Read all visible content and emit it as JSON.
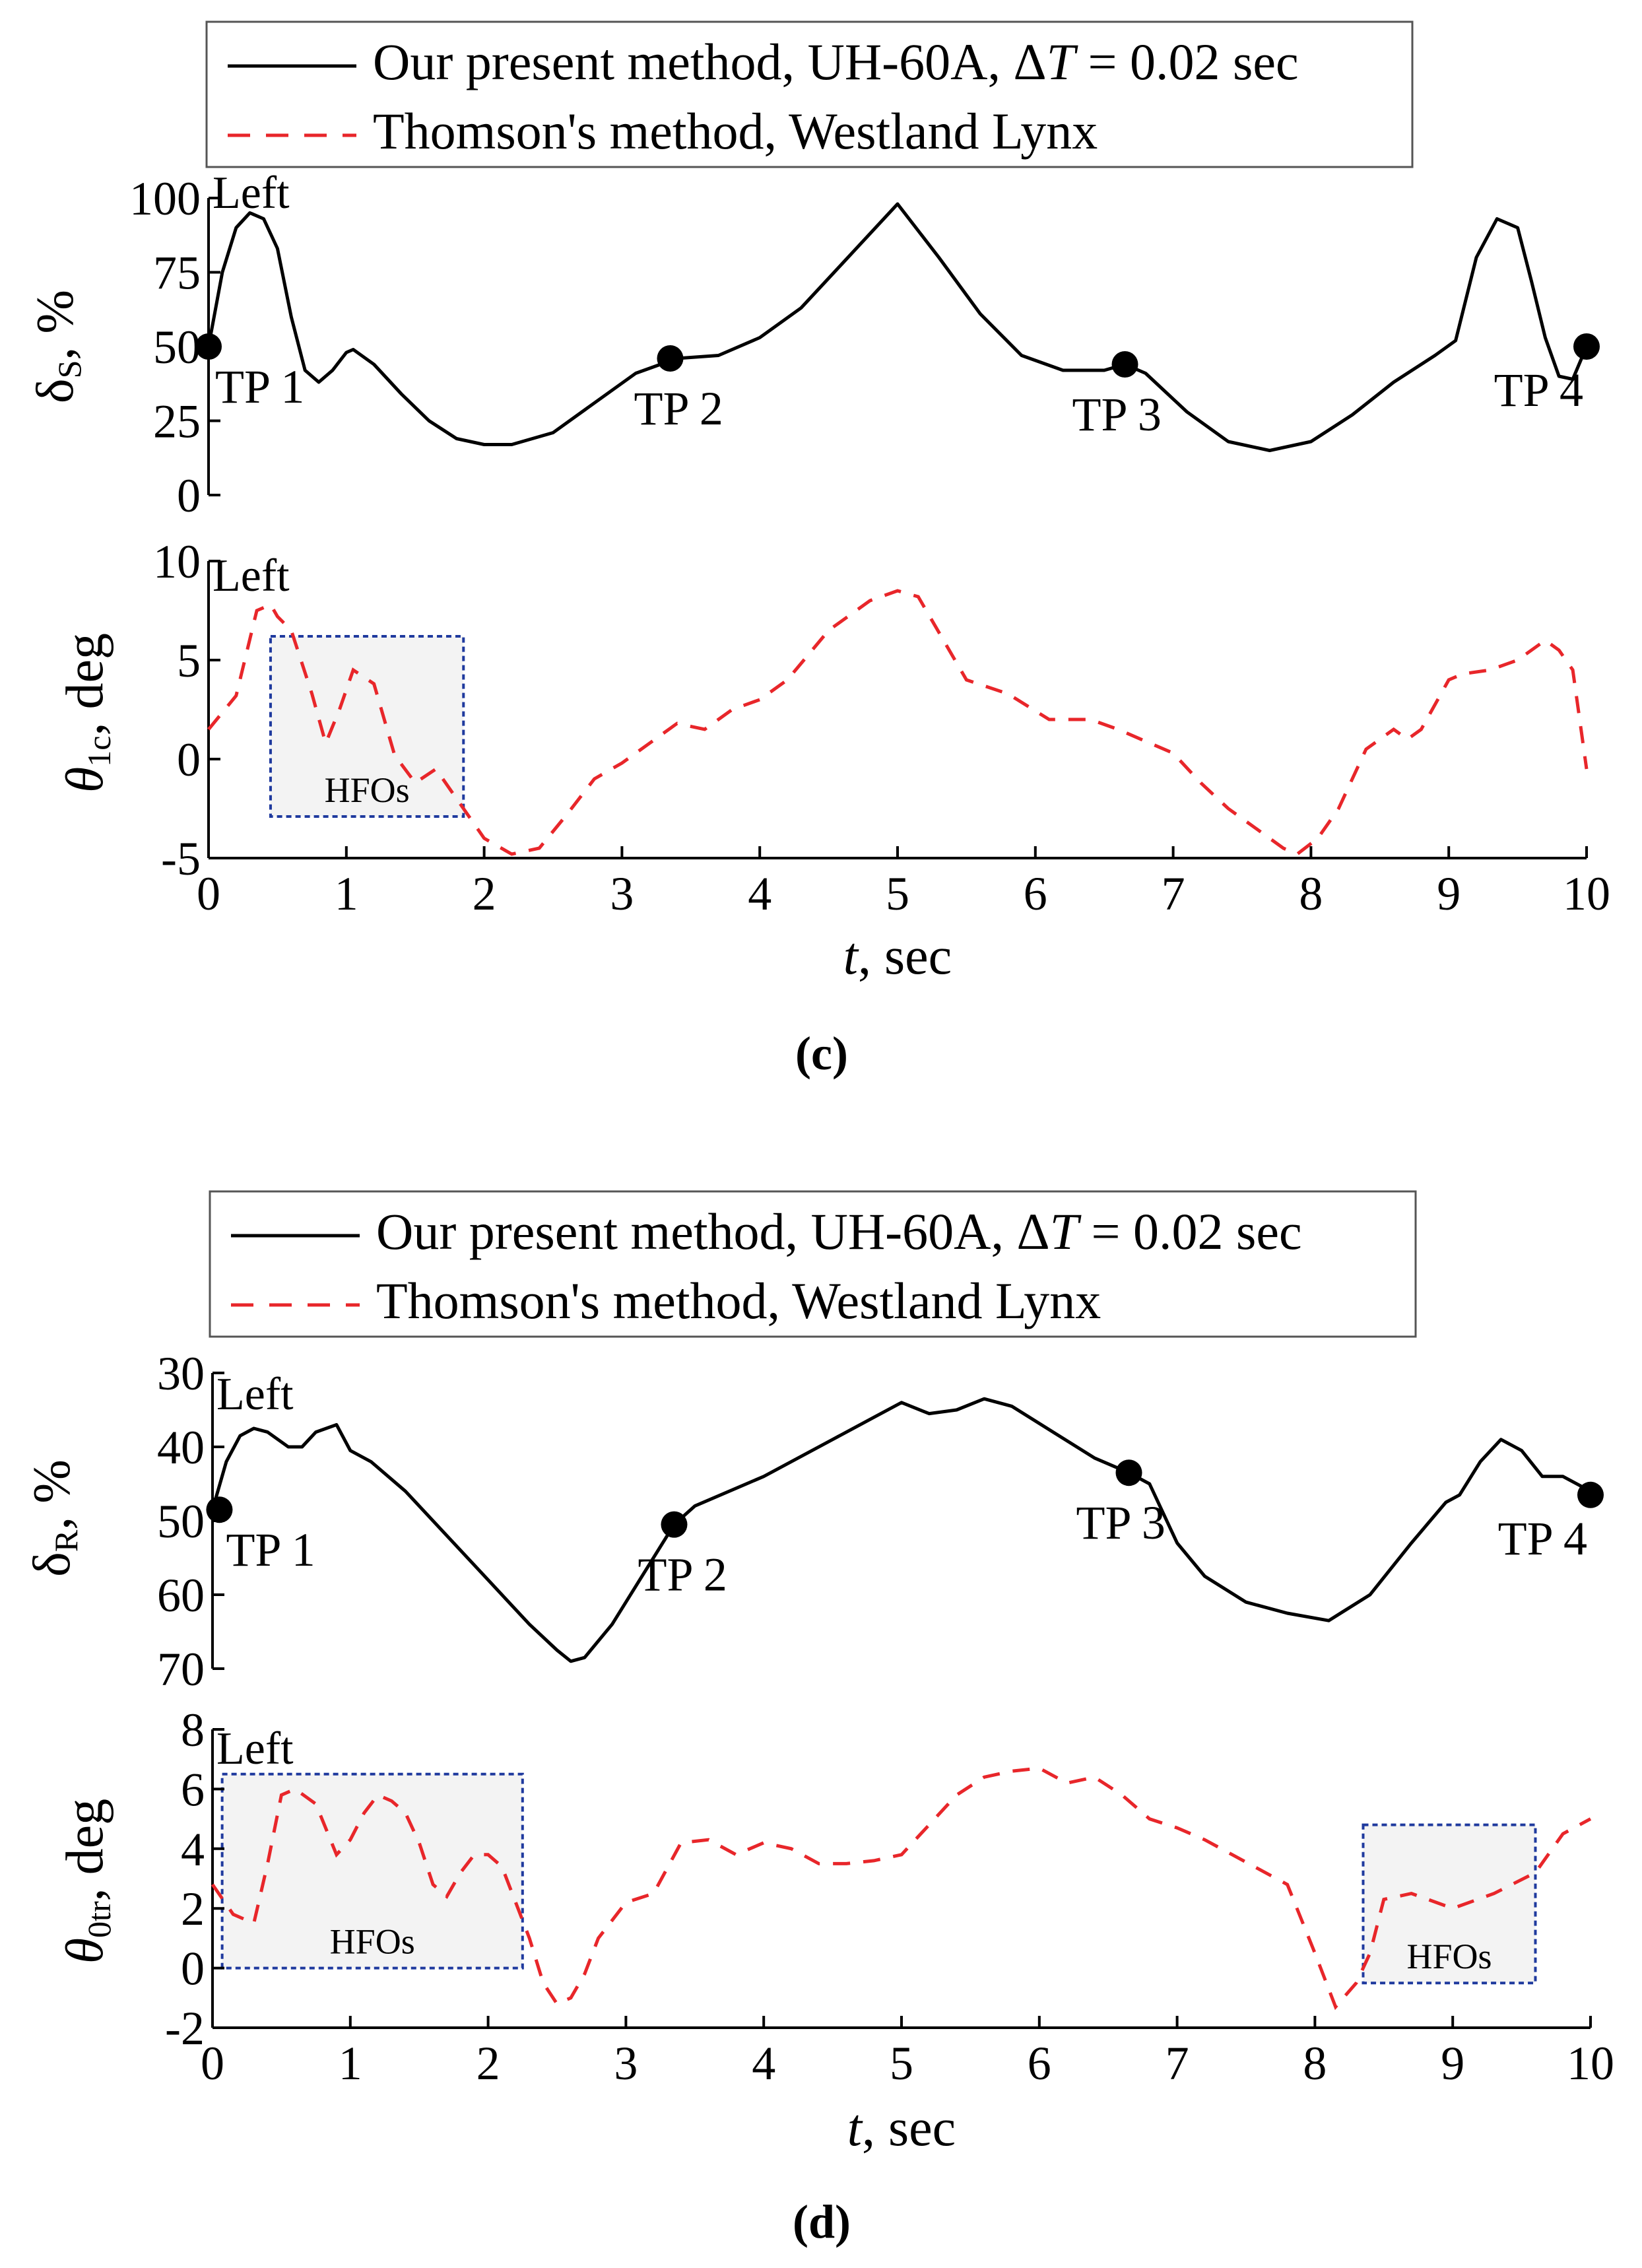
{
  "legend": {
    "entries": [
      {
        "prefix": "Our present method, UH-60A, Δ",
        "italic": "T",
        "suffix": " = 0.02 sec"
      },
      {
        "prefix": "Thomson's method, Westland Lynx",
        "italic": "",
        "suffix": ""
      }
    ]
  },
  "colors": {
    "present": "#000000",
    "thomson": "#e8262a",
    "hfo_box": "#1f3a9e",
    "hfo_fill": "#f3f3f3"
  },
  "xaxis": {
    "label_italic": "t",
    "label_rest": ", sec",
    "ticks": [
      "0",
      "1",
      "2",
      "3",
      "4",
      "5",
      "6",
      "7",
      "8",
      "9",
      "10"
    ]
  },
  "panels": [
    {
      "caption": "(c)",
      "top": {
        "ylabel_main": "δ",
        "ylabel_sub": "S",
        "ylabel_rest": ", %",
        "ticks": [
          "100",
          "75",
          "50",
          "25",
          "0"
        ],
        "annotation": "Left",
        "tp": [
          "TP 1",
          "TP 2",
          "TP 3",
          "TP 4"
        ]
      },
      "bottom": {
        "ylabel_main": "θ",
        "ylabel_sub": "1c",
        "ylabel_rest": ", deg",
        "ticks": [
          "10",
          "5",
          "0",
          "-5"
        ],
        "annotation": "Left",
        "hfo_labels": [
          "HFOs"
        ]
      }
    },
    {
      "caption": "(d)",
      "top": {
        "ylabel_main": "δ",
        "ylabel_sub": "R",
        "ylabel_rest": ", %",
        "ticks": [
          "30",
          "40",
          "50",
          "60",
          "70"
        ],
        "annotation": "Left",
        "tp": [
          "TP 1",
          "TP 2",
          "TP 3",
          "TP 4"
        ]
      },
      "bottom": {
        "ylabel_main": "θ",
        "ylabel_sub": "0tr",
        "ylabel_rest": ", deg",
        "ticks": [
          "8",
          "6",
          "4",
          "2",
          "0",
          "-2"
        ],
        "annotation": "Left",
        "hfo_labels": [
          "HFOs",
          "HFOs"
        ]
      }
    }
  ],
  "chart_data": [
    {
      "type": "line",
      "panel": "(c) top",
      "xlim": [
        0,
        10
      ],
      "ylim": [
        0,
        100
      ],
      "series": [
        {
          "name": "Our present method, UH-60A, ΔT = 0.02 sec",
          "x": [
            0,
            0.1,
            0.2,
            0.3,
            0.4,
            0.5,
            0.6,
            0.7,
            0.8,
            0.9,
            1.0,
            1.05,
            1.2,
            1.4,
            1.6,
            1.8,
            2.0,
            2.2,
            2.5,
            2.8,
            3.1,
            3.4,
            3.7,
            4.0,
            4.3,
            4.6,
            5.0,
            5.3,
            5.6,
            5.9,
            6.2,
            6.5,
            6.65,
            6.8,
            7.1,
            7.4,
            7.7,
            8.0,
            8.3,
            8.6,
            8.9,
            9.05,
            9.2,
            9.35,
            9.5,
            9.6,
            9.7,
            9.8,
            9.9,
            10.0
          ],
          "y": [
            50,
            75,
            90,
            95,
            93,
            83,
            60,
            42,
            38,
            42,
            48,
            49,
            44,
            34,
            25,
            19,
            17,
            17,
            21,
            31,
            41,
            46,
            47,
            53,
            63,
            78,
            98,
            80,
            61,
            47,
            42,
            42,
            44,
            41,
            28,
            18,
            15,
            18,
            27,
            38,
            47,
            52,
            80,
            93,
            90,
            72,
            53,
            40,
            39,
            50
          ]
        }
      ],
      "markers": [
        {
          "label": "TP 1",
          "x": 0,
          "y": 50
        },
        {
          "label": "TP 2",
          "x": 3.35,
          "y": 46
        },
        {
          "label": "TP 3",
          "x": 6.65,
          "y": 44
        },
        {
          "label": "TP 4",
          "x": 10,
          "y": 50
        }
      ]
    },
    {
      "type": "line",
      "panel": "(c) bottom",
      "xlim": [
        0,
        10
      ],
      "ylim": [
        -5,
        10
      ],
      "series": [
        {
          "name": "Thomson's method, Westland Lynx",
          "x": [
            0,
            0.2,
            0.35,
            0.45,
            0.5,
            0.6,
            0.75,
            0.85,
            0.95,
            1.05,
            1.2,
            1.35,
            1.5,
            1.65,
            1.8,
            2.0,
            2.2,
            2.4,
            2.6,
            2.8,
            3.0,
            3.2,
            3.4,
            3.6,
            3.8,
            4.0,
            4.2,
            4.5,
            4.8,
            5.0,
            5.15,
            5.5,
            5.8,
            6.1,
            6.4,
            6.6,
            6.8,
            7.0,
            7.2,
            7.4,
            7.6,
            7.8,
            7.9,
            8.05,
            8.2,
            8.4,
            8.6,
            8.7,
            8.8,
            9.0,
            9.1,
            9.3,
            9.5,
            9.7,
            9.8,
            9.9,
            10.0
          ],
          "y": [
            1.5,
            3.2,
            7.5,
            7.8,
            7.2,
            6.5,
            3.3,
            0.8,
            2.5,
            4.5,
            3.8,
            0.2,
            -1.2,
            -0.5,
            -2.0,
            -4.0,
            -4.8,
            -4.5,
            -2.8,
            -1.0,
            -0.2,
            0.8,
            1.8,
            1.5,
            2.5,
            3.0,
            4.0,
            6.5,
            8.0,
            8.5,
            8.2,
            4.0,
            3.3,
            2.0,
            2.0,
            1.5,
            0.9,
            0.3,
            -1.2,
            -2.5,
            -3.5,
            -4.5,
            -4.8,
            -4.0,
            -2.5,
            0.5,
            1.5,
            1.0,
            1.5,
            4.0,
            4.3,
            4.5,
            5.0,
            6.0,
            5.5,
            4.5,
            -0.5
          ]
        }
      ],
      "hfo_regions": [
        {
          "label": "HFOs",
          "x": [
            0.45,
            1.85
          ],
          "y": [
            -2.9,
            6.2
          ]
        }
      ]
    },
    {
      "type": "line",
      "panel": "(d) top",
      "xlim": [
        0,
        10
      ],
      "ylim": [
        70,
        30
      ],
      "y_inverted": true,
      "series": [
        {
          "name": "Our present method, UH-60A, ΔT = 0.02 sec",
          "x": [
            0,
            0.1,
            0.2,
            0.3,
            0.4,
            0.55,
            0.65,
            0.75,
            0.9,
            1.0,
            1.15,
            1.4,
            1.7,
            2.0,
            2.3,
            2.5,
            2.6,
            2.7,
            2.9,
            3.1,
            3.35,
            3.5,
            4.0,
            4.5,
            4.8,
            5.0,
            5.2,
            5.4,
            5.6,
            5.8,
            6.1,
            6.4,
            6.65,
            6.8,
            7.0,
            7.2,
            7.5,
            7.8,
            8.1,
            8.4,
            8.7,
            8.95,
            9.05,
            9.2,
            9.35,
            9.5,
            9.65,
            9.8,
            10.0
          ],
          "y": [
            48.5,
            42,
            38.5,
            37.5,
            38,
            40,
            40,
            38,
            37,
            40.5,
            42,
            46,
            52,
            58,
            64,
            67.5,
            69,
            68.5,
            64,
            58,
            50.5,
            48,
            44,
            39,
            36,
            34,
            35.5,
            35,
            33.5,
            34.5,
            38,
            41.5,
            43.5,
            45,
            53,
            57.5,
            61,
            62.5,
            63.5,
            60,
            53,
            47.5,
            46.5,
            42,
            39,
            40.5,
            44,
            44,
            46
          ]
        }
      ],
      "markers": [
        {
          "label": "TP 1",
          "x": 0.05,
          "y": 48.5
        },
        {
          "label": "TP 2",
          "x": 3.35,
          "y": 50.5
        },
        {
          "label": "TP 3",
          "x": 6.65,
          "y": 43.5
        },
        {
          "label": "TP 4",
          "x": 10,
          "y": 46.5
        }
      ]
    },
    {
      "type": "line",
      "panel": "(d) bottom",
      "xlim": [
        0,
        10
      ],
      "ylim": [
        -2,
        8
      ],
      "series": [
        {
          "name": "Thomson's method, Westland Lynx",
          "x": [
            0,
            0.15,
            0.3,
            0.4,
            0.5,
            0.6,
            0.75,
            0.9,
            1.0,
            1.1,
            1.2,
            1.3,
            1.4,
            1.5,
            1.6,
            1.7,
            1.8,
            1.9,
            2.0,
            2.1,
            2.2,
            2.3,
            2.4,
            2.5,
            2.6,
            2.7,
            2.8,
            3.0,
            3.2,
            3.4,
            3.6,
            3.8,
            4.0,
            4.2,
            4.4,
            4.6,
            4.8,
            5.0,
            5.2,
            5.4,
            5.6,
            5.8,
            6.0,
            6.2,
            6.4,
            6.6,
            6.8,
            7.0,
            7.2,
            7.4,
            7.6,
            7.8,
            8.0,
            8.15,
            8.3,
            8.4,
            8.5,
            8.7,
            9.0,
            9.3,
            9.6,
            9.8,
            10.0
          ],
          "y": [
            2.8,
            1.8,
            1.5,
            3.5,
            5.8,
            6.0,
            5.5,
            3.8,
            4.3,
            5.2,
            5.8,
            5.6,
            5.2,
            4.2,
            2.8,
            2.4,
            3.2,
            3.8,
            3.8,
            3.4,
            2.2,
            1.0,
            -0.5,
            -1.2,
            -1.0,
            -0.2,
            1.0,
            2.2,
            2.5,
            4.2,
            4.3,
            3.8,
            4.2,
            4.0,
            3.5,
            3.5,
            3.6,
            3.8,
            4.8,
            5.8,
            6.4,
            6.6,
            6.7,
            6.2,
            6.4,
            5.8,
            5.0,
            4.7,
            4.3,
            3.8,
            3.3,
            2.8,
            0.5,
            -1.3,
            -0.5,
            0.5,
            2.3,
            2.5,
            2.0,
            2.5,
            3.2,
            4.5,
            5.0
          ]
        }
      ],
      "hfo_regions": [
        {
          "label": "HFOs",
          "x": [
            0.07,
            2.25
          ],
          "y": [
            0.0,
            6.5
          ]
        },
        {
          "label": "HFOs",
          "x": [
            8.35,
            9.6
          ],
          "y": [
            -0.5,
            4.8
          ]
        }
      ]
    }
  ]
}
